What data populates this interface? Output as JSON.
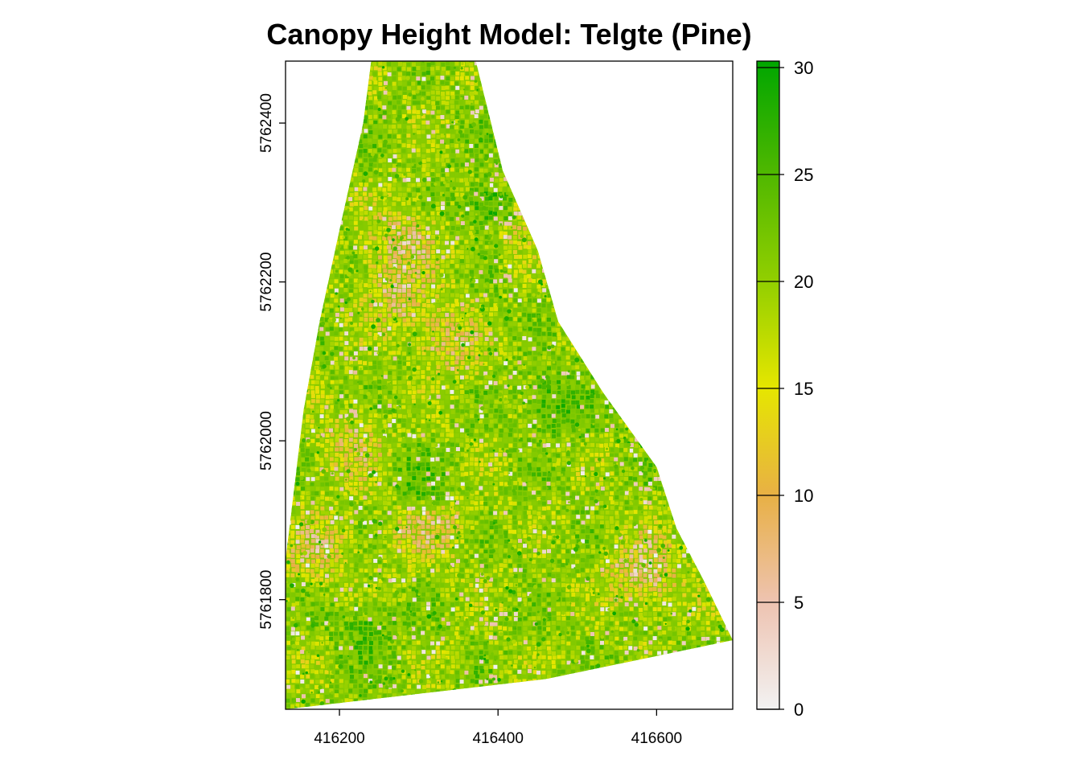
{
  "chart_data": {
    "type": "heatmap",
    "title": "Canopy Height Model: Telgte (Pine)",
    "xlabel": "",
    "ylabel": "",
    "xlim": [
      416132,
      416696
    ],
    "ylim": [
      5761662,
      5762478
    ],
    "x_ticks": [
      416200,
      416400,
      416600
    ],
    "x_tick_labels": [
      "416200",
      "416400",
      "416600"
    ],
    "y_ticks": [
      5761800,
      5762000,
      5762200,
      5762400
    ],
    "y_tick_labels": [
      "5761800",
      "5762000",
      "5762200",
      "5762400"
    ],
    "grid": false,
    "value_range": [
      0,
      30.3
    ],
    "colorbar": {
      "ticks": [
        0,
        5,
        10,
        15,
        20,
        25,
        30
      ],
      "tick_labels": [
        "0",
        "5",
        "10",
        "15",
        "20",
        "25",
        "30"
      ],
      "palette_stops": [
        {
          "value": 0,
          "color": "#f2f2f2"
        },
        {
          "value": 5,
          "color": "#eec3b1"
        },
        {
          "value": 10,
          "color": "#e8b045"
        },
        {
          "value": 15,
          "color": "#e6e600"
        },
        {
          "value": 20,
          "color": "#92cf00"
        },
        {
          "value": 25,
          "color": "#50b800"
        },
        {
          "value": 30.3,
          "color": "#00a600"
        }
      ]
    },
    "raster_footprint": [
      [
        416240,
        5762478
      ],
      [
        416372,
        5762478
      ],
      [
        416406,
        5762340
      ],
      [
        416450,
        5762240
      ],
      [
        416476,
        5762150
      ],
      [
        416533,
        5762060
      ],
      [
        416600,
        5761967
      ],
      [
        416625,
        5761890
      ],
      [
        416660,
        5761823
      ],
      [
        416696,
        5761749
      ],
      [
        416460,
        5761700
      ],
      [
        416132,
        5761662
      ],
      [
        416132,
        5761850
      ],
      [
        416155,
        5762040
      ],
      [
        416175,
        5762150
      ],
      [
        416200,
        5762265
      ],
      [
        416230,
        5762400
      ]
    ],
    "low_canopy_patches": [
      {
        "x": 416305,
        "y": 5761900,
        "value": 4
      },
      {
        "x": 416280,
        "y": 5762250,
        "value": 7
      },
      {
        "x": 416270,
        "y": 5762190,
        "value": 8
      },
      {
        "x": 416580,
        "y": 5761840,
        "value": 5
      },
      {
        "x": 416165,
        "y": 5761870,
        "value": 8
      },
      {
        "x": 416340,
        "y": 5762130,
        "value": 9
      },
      {
        "x": 416420,
        "y": 5762290,
        "value": 6
      },
      {
        "x": 416215,
        "y": 5761990,
        "value": 9
      }
    ],
    "tall_canopy_patches": [
      {
        "x": 416390,
        "y": 5762300,
        "value": 27
      },
      {
        "x": 416300,
        "y": 5761950,
        "value": 27
      },
      {
        "x": 416470,
        "y": 5762050,
        "value": 26
      },
      {
        "x": 416420,
        "y": 5762420,
        "value": 26
      },
      {
        "x": 416230,
        "y": 5761760,
        "value": 25
      }
    ]
  }
}
